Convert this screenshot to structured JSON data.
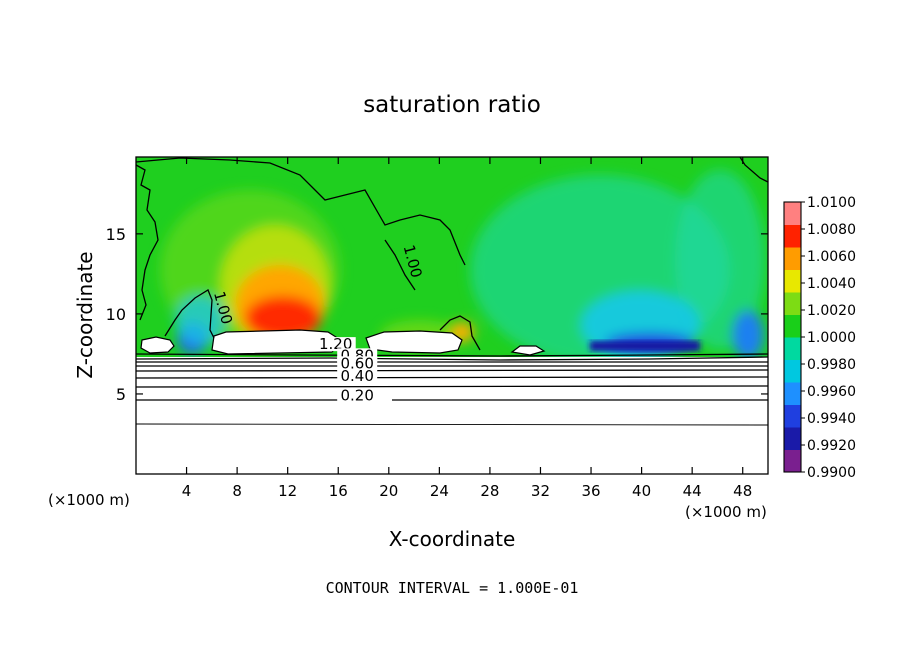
{
  "chart_data": {
    "type": "heatmap",
    "title": "saturation ratio",
    "xlabel": "X-coordinate",
    "ylabel": "Z-coordinate",
    "x_unit_label_left": "(×1000 m)",
    "x_unit_label_right": "(×1000 m)",
    "footer": "CONTOUR INTERVAL = 1.000E-01",
    "xlim": [
      0,
      50
    ],
    "ylim": [
      0,
      19.8
    ],
    "x_ticks": [
      4,
      8,
      12,
      16,
      20,
      24,
      28,
      32,
      36,
      40,
      44,
      48
    ],
    "y_ticks": [
      5,
      10,
      15
    ],
    "colorbar": {
      "min": 0.99,
      "max": 1.01,
      "tick_labels": [
        "1.0100",
        "1.0080",
        "1.0060",
        "1.0040",
        "1.0020",
        "1.0000",
        "0.9980",
        "0.9960",
        "0.9940",
        "0.9920",
        "0.9900"
      ],
      "colors": [
        "#7a1f8f",
        "#1a1aa8",
        "#1f3fe0",
        "#1e90ff",
        "#00c8e0",
        "#00d9a0",
        "#19cf19",
        "#7ddc14",
        "#e8e800",
        "#ff9c00",
        "#ff2200",
        "#ff8080"
      ]
    },
    "contour_labels": [
      {
        "text": "1.20",
        "x": 15.8,
        "y": 7.8
      },
      {
        "text": "0.80",
        "x": 17.5,
        "y": 7.1
      },
      {
        "text": "0.60",
        "x": 17.5,
        "y": 6.6
      },
      {
        "text": "0.40",
        "x": 17.5,
        "y": 5.8
      },
      {
        "text": "0.20",
        "x": 17.5,
        "y": 4.6
      },
      {
        "text": "1.00",
        "x": 21.5,
        "y": 13.2
      },
      {
        "text": "1.00",
        "x": 6.5,
        "y": 10.3
      }
    ],
    "contour_levels_below_cloudbase": [
      0.2,
      0.4,
      0.6,
      0.8,
      1.0,
      1.2
    ]
  }
}
